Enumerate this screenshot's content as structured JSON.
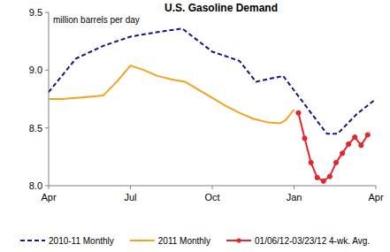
{
  "chart_data": {
    "type": "line",
    "title": "U.S. Gasoline Demand",
    "y_label": "million barrels per day",
    "xlim": [
      0,
      12
    ],
    "xticks": [
      {
        "value": 0,
        "label": "Apr"
      },
      {
        "value": 3,
        "label": "Jul"
      },
      {
        "value": 6,
        "label": "Oct"
      },
      {
        "value": 9,
        "label": "Jan"
      },
      {
        "value": 12,
        "label": "Apr"
      }
    ],
    "ylim": [
      8,
      9.5
    ],
    "yticks": [
      {
        "value": 8,
        "label": "8.0"
      },
      8.5,
      {
        "value": 9,
        "label": "9.0"
      },
      9.5
    ],
    "grid": false,
    "legend": "bottom",
    "series": [
      {
        "name": "2010-11 Monthly",
        "color": "#14148c",
        "line_style": "dashed",
        "x": [
          0,
          1,
          2,
          3,
          4,
          4.9,
          6,
          7,
          7.6,
          8.6,
          10.2,
          10.6,
          11.3,
          12
        ],
        "values": [
          8.81,
          9.1,
          9.21,
          9.29,
          9.33,
          9.36,
          9.16,
          9.08,
          8.9,
          8.95,
          8.45,
          8.45,
          8.62,
          8.75
        ]
      },
      {
        "name": "2011 Monthly",
        "color": "#f5a21e",
        "line_style": "solid",
        "x": [
          0,
          0.5,
          1,
          1.5,
          2,
          2.5,
          3,
          3.5,
          4,
          4.5,
          5,
          5.5,
          6,
          6.5,
          7,
          7.5,
          8,
          8.5,
          8.7,
          9
        ],
        "values": [
          8.75,
          8.75,
          8.76,
          8.77,
          8.78,
          8.9,
          9.04,
          9.0,
          8.95,
          8.92,
          8.9,
          8.83,
          8.76,
          8.69,
          8.63,
          8.58,
          8.55,
          8.54,
          8.57,
          8.66
        ]
      },
      {
        "name": "01/06/12-03/23/12 4-wk. Avg.",
        "color": "#e3262d",
        "line_style": "solid",
        "marker": "circle",
        "x": [
          9.16,
          9.39,
          9.62,
          9.85,
          10.08,
          10.31,
          10.54,
          10.77,
          11.0,
          11.23,
          11.46,
          11.7
        ],
        "values": [
          8.63,
          8.41,
          8.2,
          8.07,
          8.04,
          8.08,
          8.2,
          8.28,
          8.36,
          8.42,
          8.35,
          8.44
        ]
      }
    ]
  }
}
